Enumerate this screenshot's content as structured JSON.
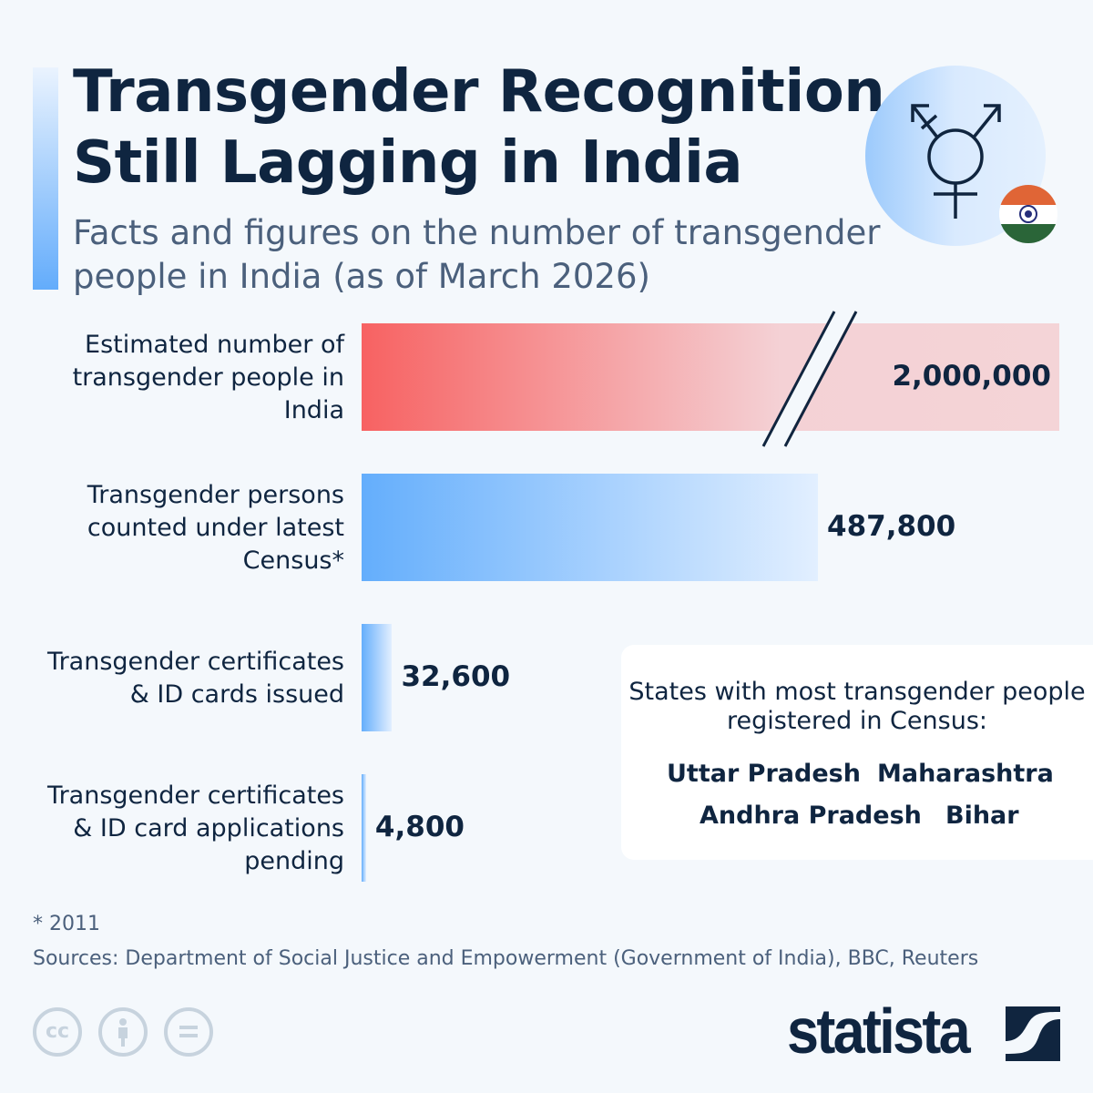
{
  "header": {
    "title_line1": "Transgender Recognition",
    "title_line2": "Still Lagging in India",
    "subtitle": "Facts and figures on the number of transgender people in India (as of March 2026)",
    "icons": [
      "transgender-symbol-icon",
      "india-flag-icon"
    ]
  },
  "chart_data": {
    "type": "bar",
    "orientation": "horizontal",
    "axis_break_on_first_bar": true,
    "categories": [
      "Estimated number of transgender people in India",
      "Transgender persons counted under latest Census*",
      "Transgender certificates & ID cards issued",
      "Transgender certificates & ID card applications pending"
    ],
    "values": [
      2000000,
      487800,
      32600,
      4800
    ],
    "value_labels": [
      "2,000,000",
      "487,800",
      "32,600",
      "4,800"
    ],
    "colors": [
      "#f76262",
      "#64aefc",
      "#64aefc",
      "#64aefc"
    ]
  },
  "states_box": {
    "title": "States with most transgender people registered in Census:",
    "states": [
      "Uttar Pradesh",
      "Maharashtra",
      "Andhra Pradesh",
      "Bihar"
    ]
  },
  "footer": {
    "note": "* 2011",
    "sources": "Sources: Department of Social Justice and Empowerment (Government of India), BBC, Reuters",
    "license_icons": [
      "cc-icon",
      "attribution-icon",
      "no-derivatives-icon"
    ],
    "cc_text": "cc",
    "brand": "statista"
  }
}
